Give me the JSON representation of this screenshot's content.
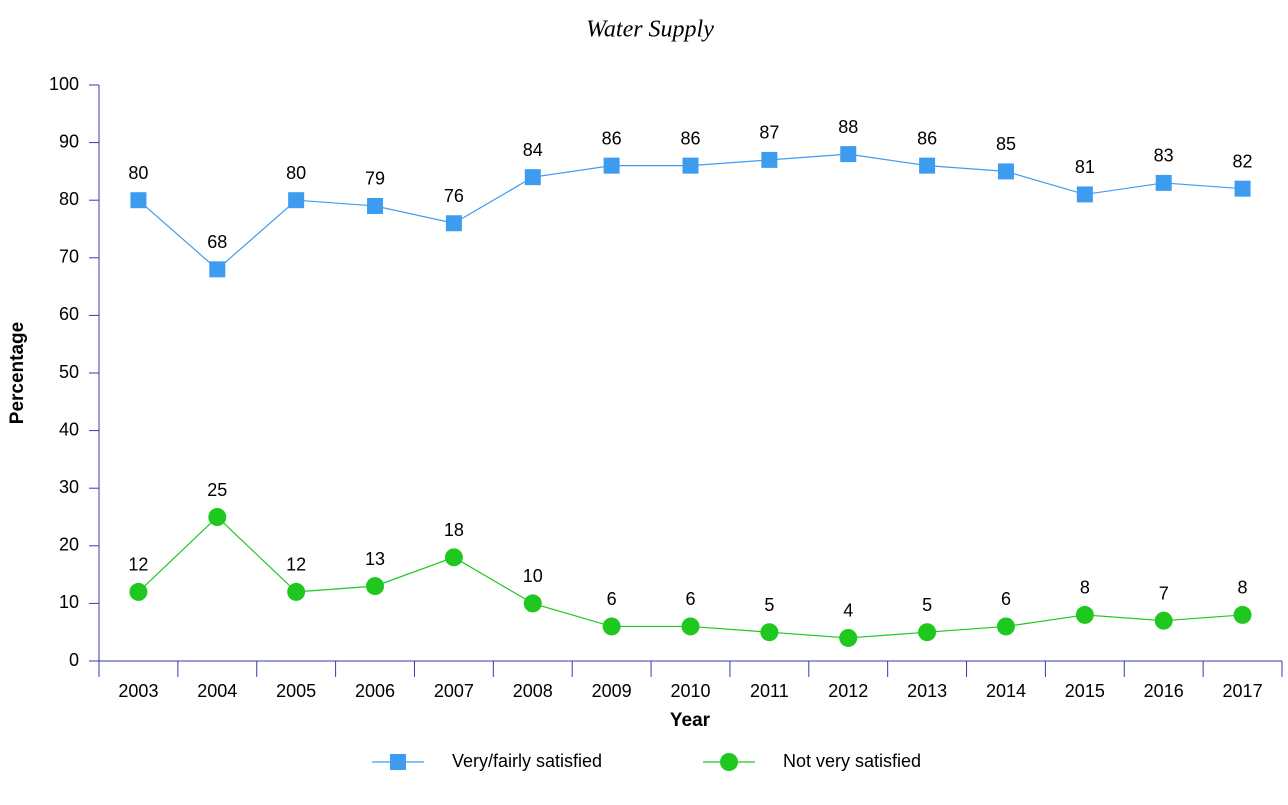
{
  "chart_data": {
    "type": "line",
    "title": "Water Supply",
    "x_label": "Year",
    "y_label": "Percentage",
    "categories": [
      "2003",
      "2004",
      "2005",
      "2006",
      "2007",
      "2008",
      "2009",
      "2010",
      "2011",
      "2012",
      "2013",
      "2014",
      "2015",
      "2016",
      "2017"
    ],
    "series": [
      {
        "name": "Very/fairly satisfied",
        "color": "#3d9cf0",
        "marker": "square",
        "values": [
          80,
          68,
          80,
          79,
          76,
          84,
          86,
          86,
          87,
          88,
          86,
          85,
          81,
          83,
          82
        ]
      },
      {
        "name": "Not very satisfied",
        "color": "#1ec81e",
        "marker": "circle",
        "values": [
          12,
          25,
          12,
          13,
          18,
          10,
          6,
          6,
          5,
          4,
          5,
          6,
          8,
          7,
          8
        ]
      }
    ],
    "ylim": [
      0,
      100
    ],
    "yticks": [
      0,
      10,
      20,
      30,
      40,
      50,
      60,
      70,
      80,
      90,
      100
    ],
    "legend": "bottom"
  }
}
